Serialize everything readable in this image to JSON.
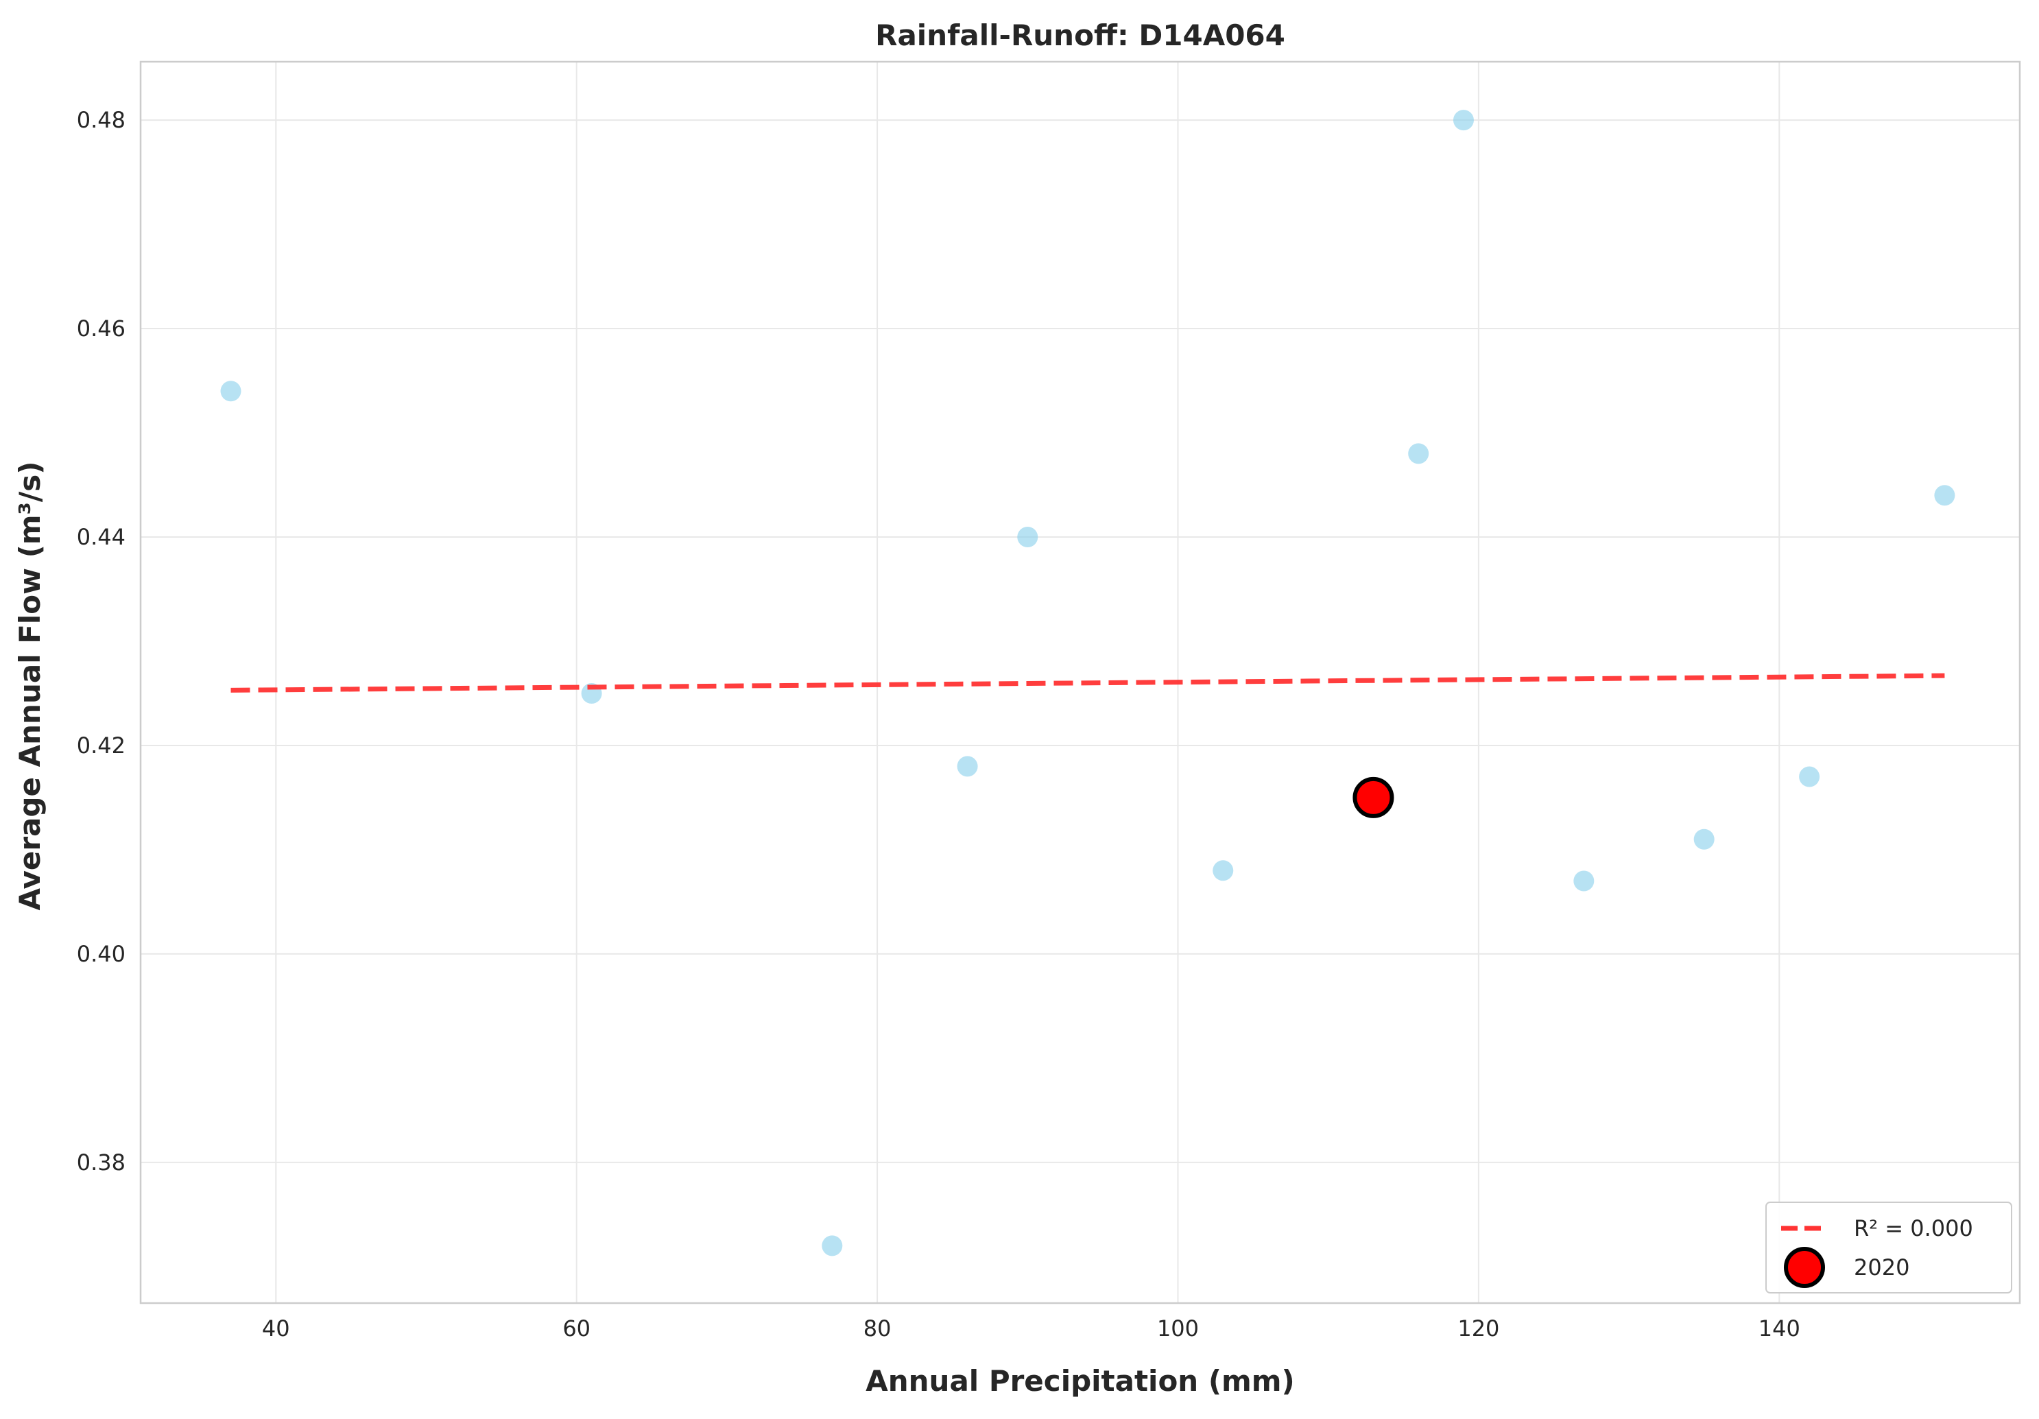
{
  "chart_data": {
    "type": "scatter",
    "title": "Rainfall-Runoff: D14A064",
    "xlabel": "Annual Precipitation (mm)",
    "ylabel": "Average Annual Flow (m³/s)",
    "xlim": [
      31,
      156
    ],
    "ylim": [
      0.3665,
      0.4856
    ],
    "xticks": [
      40,
      60,
      80,
      100,
      120,
      140
    ],
    "yticks": [
      0.38,
      0.4,
      0.42,
      0.44,
      0.46,
      0.48
    ],
    "xtick_labels": [
      "40",
      "60",
      "80",
      "100",
      "120",
      "140"
    ],
    "ytick_labels": [
      "0.38",
      "0.40",
      "0.42",
      "0.44",
      "0.46",
      "0.48"
    ],
    "grid": true,
    "legend_position": "lower right",
    "series": [
      {
        "kind": "scatter",
        "color": "#87ceeb",
        "points": [
          {
            "x": 37,
            "y": 0.454
          },
          {
            "x": 61,
            "y": 0.425
          },
          {
            "x": 77,
            "y": 0.372
          },
          {
            "x": 86,
            "y": 0.418
          },
          {
            "x": 90,
            "y": 0.44
          },
          {
            "x": 103,
            "y": 0.408
          },
          {
            "x": 116,
            "y": 0.448
          },
          {
            "x": 119,
            "y": 0.48
          },
          {
            "x": 127,
            "y": 0.407
          },
          {
            "x": 135,
            "y": 0.411
          },
          {
            "x": 142,
            "y": 0.417
          },
          {
            "x": 151,
            "y": 0.444
          }
        ]
      },
      {
        "kind": "line",
        "name": "R² = 0.000",
        "color": "#ff3333",
        "style": "dashed",
        "points": [
          {
            "x": 37,
            "y": 0.4253
          },
          {
            "x": 151,
            "y": 0.4267
          }
        ]
      },
      {
        "kind": "highlight",
        "name": "2020",
        "color": "#ff0000",
        "edge_color": "#000000",
        "points": [
          {
            "x": 113,
            "y": 0.415
          }
        ]
      }
    ]
  }
}
